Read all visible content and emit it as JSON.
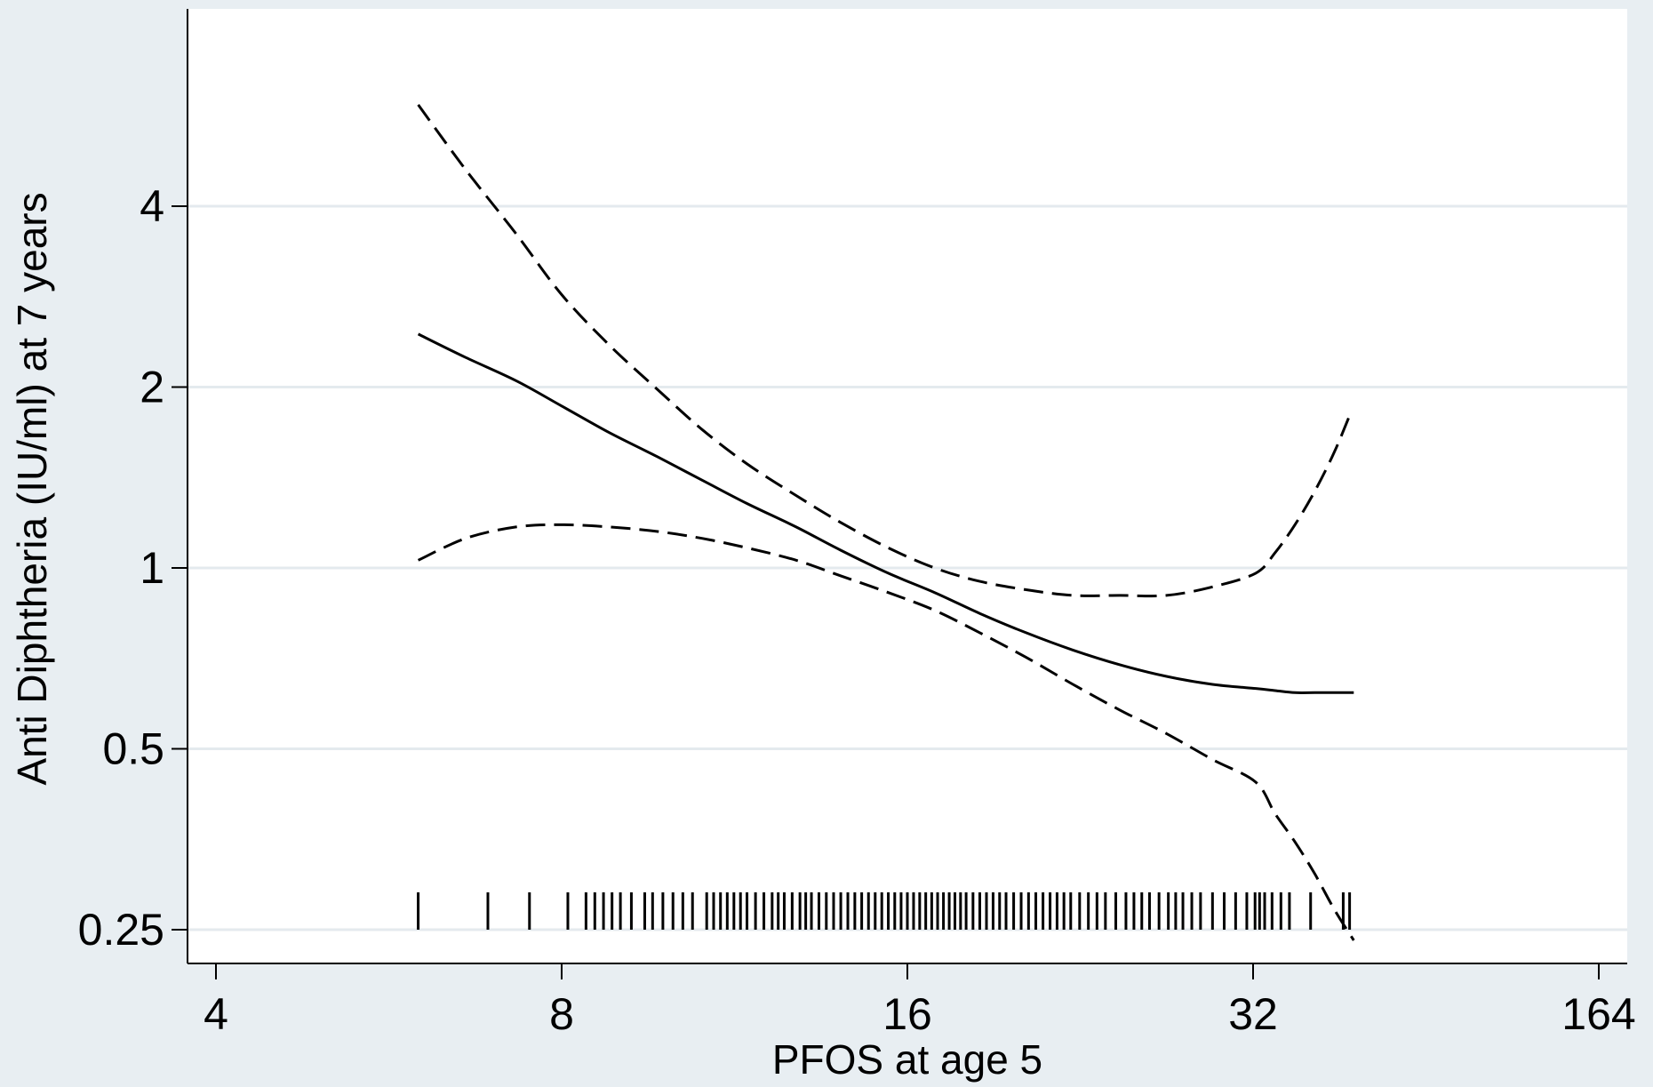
{
  "chart_data": {
    "type": "line",
    "title": "",
    "xlabel": "PFOS at age 5",
    "ylabel": "Anti Diphtheria (IU/ml) at 7 years",
    "x_scale": "log2",
    "y_scale": "log2",
    "xlim": [
      4,
      164
    ],
    "ylim": [
      0.23,
      6.5
    ],
    "x_ticks": [
      {
        "value": 4,
        "label": "4"
      },
      {
        "value": 8,
        "label": "8"
      },
      {
        "value": 16,
        "label": "16"
      },
      {
        "value": 32,
        "label": "32"
      },
      {
        "value": 164,
        "label": "164"
      }
    ],
    "y_ticks": [
      {
        "value": 0.25,
        "label": "0.25"
      },
      {
        "value": 0.5,
        "label": "0.5"
      },
      {
        "value": 1,
        "label": "1"
      },
      {
        "value": 2,
        "label": "2"
      },
      {
        "value": 4,
        "label": "4"
      }
    ],
    "grid": true,
    "legend": "none",
    "series": [
      {
        "role": "estimate",
        "style": "solid",
        "x": [
          6.0,
          6.6,
          7.3,
          8.0,
          8.8,
          9.7,
          10.6,
          11.6,
          12.8,
          14.0,
          15.4,
          16.9,
          18.5,
          20.3,
          22.3,
          24.5,
          26.9,
          29.5,
          32.4,
          35.5,
          39.0,
          42.8,
          47.0,
          51.5
        ],
        "y": [
          2.45,
          2.24,
          2.05,
          1.86,
          1.68,
          1.53,
          1.4,
          1.28,
          1.17,
          1.07,
          0.98,
          0.91,
          0.84,
          0.78,
          0.73,
          0.69,
          0.66,
          0.64,
          0.63,
          0.625,
          0.62,
          0.62,
          0.62,
          0.62
        ]
      },
      {
        "role": "upper-ci",
        "style": "dashed",
        "x": [
          6.0,
          6.6,
          7.3,
          8.0,
          8.8,
          9.7,
          10.6,
          11.6,
          12.8,
          14.0,
          15.4,
          16.9,
          18.5,
          20.3,
          22.3,
          24.5,
          26.9,
          29.5,
          32.4,
          35.5,
          39.0,
          42.8,
          47.0,
          51.0
        ],
        "y": [
          5.9,
          4.6,
          3.6,
          2.85,
          2.35,
          1.98,
          1.7,
          1.49,
          1.32,
          1.19,
          1.08,
          1.0,
          0.95,
          0.92,
          0.9,
          0.9,
          0.9,
          0.93,
          0.98,
          1.06,
          1.18,
          1.34,
          1.56,
          1.83
        ]
      },
      {
        "role": "lower-ci",
        "style": "dashed",
        "x": [
          6.0,
          6.6,
          7.3,
          8.0,
          8.8,
          9.7,
          10.6,
          11.6,
          12.8,
          14.0,
          15.4,
          16.9,
          18.5,
          20.3,
          22.3,
          24.5,
          26.9,
          29.5,
          32.4,
          35.5,
          39.0,
          42.8,
          47.0,
          51.5
        ],
        "y": [
          1.03,
          1.12,
          1.17,
          1.18,
          1.17,
          1.15,
          1.12,
          1.08,
          1.03,
          0.97,
          0.91,
          0.85,
          0.78,
          0.71,
          0.64,
          0.58,
          0.53,
          0.48,
          0.44,
          0.39,
          0.35,
          0.31,
          0.27,
          0.24
        ]
      }
    ],
    "rug": {
      "y": 0.25,
      "x": [
        6.0,
        6.9,
        7.5,
        8.1,
        8.4,
        8.55,
        8.7,
        8.85,
        9.0,
        9.2,
        9.45,
        9.6,
        9.8,
        10.0,
        10.2,
        10.4,
        10.7,
        10.85,
        11.0,
        11.15,
        11.3,
        11.45,
        11.6,
        11.8,
        12.0,
        12.2,
        12.35,
        12.5,
        12.7,
        12.9,
        13.05,
        13.2,
        13.4,
        13.6,
        13.8,
        14.0,
        14.2,
        14.4,
        14.6,
        14.8,
        15.0,
        15.2,
        15.4,
        15.6,
        15.8,
        16.0,
        16.2,
        16.4,
        16.6,
        16.8,
        17.0,
        17.2,
        17.4,
        17.6,
        17.8,
        18.0,
        18.25,
        18.5,
        18.75,
        19.0,
        19.25,
        19.5,
        19.8,
        20.1,
        20.4,
        20.7,
        21.0,
        21.3,
        21.6,
        21.9,
        22.2,
        22.6,
        23.0,
        23.4,
        23.8,
        24.3,
        24.8,
        25.2,
        25.6,
        26.0,
        26.5,
        27.0,
        27.4,
        27.8,
        28.3,
        28.8,
        29.5,
        30.2,
        30.9,
        31.6,
        32.3,
        33.0,
        33.8,
        35.0,
        36.5,
        38.0,
        42.0,
        49.0,
        50.5
      ]
    }
  }
}
